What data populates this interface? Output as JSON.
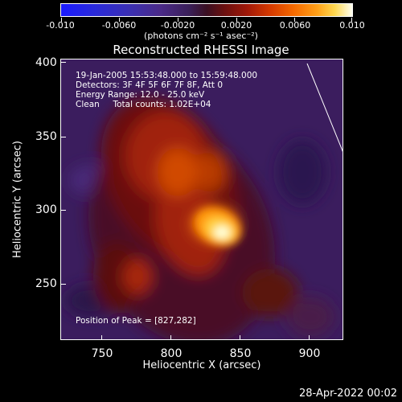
{
  "colorbar": {
    "labels": [
      "-0.010",
      "-0.0060",
      "-0.0020",
      "0.0020",
      "0.0060",
      "0.010"
    ],
    "units": "(photons cm⁻² s⁻¹ asec⁻²)"
  },
  "title": "Reconstructed RHESSI Image",
  "info": {
    "time": "19-Jan-2005 15:53:48.000 to 15:59:48.000",
    "detectors": "Detectors: 3F 4F 5F 6F 7F 8F, Att 0",
    "energy": "Energy Range: 12.0 - 25.0 keV",
    "clean": "Clean     Total counts: 1.02E+04"
  },
  "peak": "Position of Peak = [827,282]",
  "axes": {
    "x_title": "Heliocentric X (arcsec)",
    "y_title": "Heliocentric Y (arcsec)",
    "x_ticks": [
      "750",
      "800",
      "850",
      "900"
    ],
    "y_ticks": [
      "400",
      "350",
      "300",
      "250"
    ]
  },
  "timestamp": "28-Apr-2022 00:02"
}
